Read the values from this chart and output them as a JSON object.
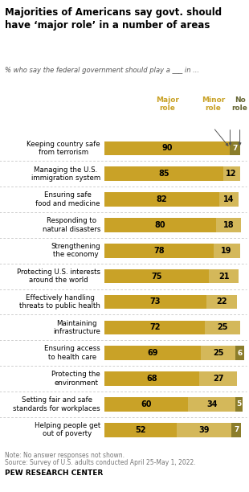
{
  "title": "Majorities of Americans say govt. should\nhave ‘major role’ in a number of areas",
  "subtitle": "% who say the federal government should play a ___ in ...",
  "categories": [
    "Keeping country safe\nfrom terrorism",
    "Managing the U.S.\nimmigration system",
    "Ensuring safe\nfood and medicine",
    "Responding to\nnatural disasters",
    "Strengthening\nthe economy",
    "Protecting U.S. interests\naround the world",
    "Effectively handling\nthreats to public health",
    "Maintaining\ninfrastructure",
    "Ensuring access\nto health care",
    "Protecting the\nenvironment",
    "Setting fair and safe\nstandards for workplaces",
    "Helping people get\nout of poverty"
  ],
  "major_role": [
    90,
    85,
    82,
    80,
    78,
    75,
    73,
    72,
    69,
    68,
    60,
    52
  ],
  "minor_role": [
    0,
    12,
    14,
    18,
    19,
    21,
    22,
    25,
    25,
    27,
    34,
    39
  ],
  "no_role": [
    7,
    0,
    0,
    0,
    0,
    0,
    0,
    0,
    6,
    0,
    5,
    7
  ],
  "major_color": "#C9A227",
  "minor_color": "#D4B85A",
  "no_role_color": "#8B7D2A",
  "note": "Note: No answer responses not shown.",
  "source": "Source: Survey of U.S. adults conducted April 25-May 1, 2022.",
  "credit": "PEW RESEARCH CENTER",
  "background_color": "#FFFFFF",
  "header_major_color": "#C9A227",
  "header_minor_color": "#C9A227",
  "header_no_color": "#666633"
}
